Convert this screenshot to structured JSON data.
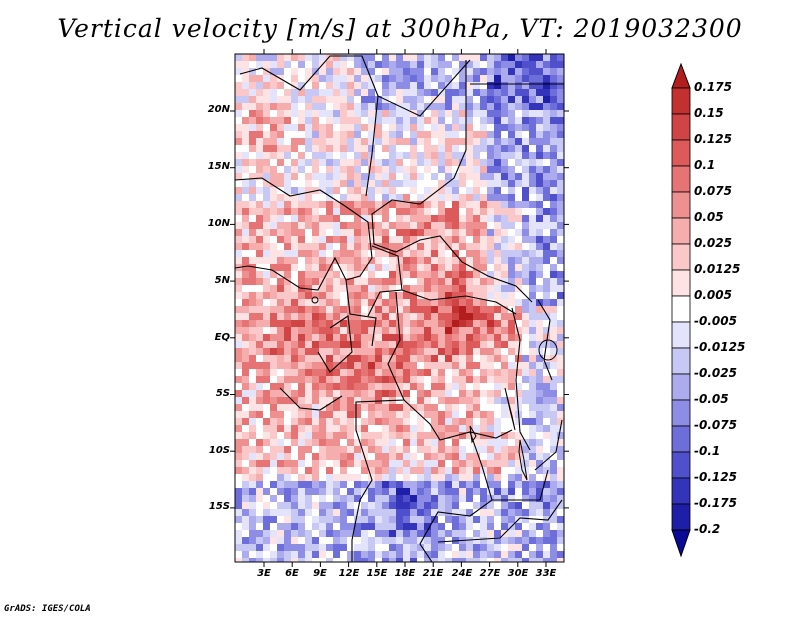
{
  "title": "Vertical velocity [m/s] at 300hPa, VT: 2019032300",
  "credit": "GrADS: IGES/COLA",
  "map": {
    "lat_labels": [
      "20N",
      "15N",
      "10N",
      "5N",
      "EQ",
      "5S",
      "10S",
      "15S"
    ],
    "lon_labels": [
      "3E",
      "6E",
      "9E",
      "12E",
      "15E",
      "18E",
      "21E",
      "24E",
      "27E",
      "30E",
      "33E"
    ]
  },
  "colorbar": {
    "labels": [
      "0.175",
      "0.15",
      "0.125",
      "0.1",
      "0.075",
      "0.05",
      "0.025",
      "0.0125",
      "0.005",
      "-0.005",
      "-0.0125",
      "-0.025",
      "-0.05",
      "-0.075",
      "-0.1",
      "-0.125",
      "-0.175",
      "-0.2"
    ],
    "colors": [
      "#b21e1e",
      "#c23030",
      "#cf4444",
      "#dc5a5a",
      "#e67474",
      "#ee9090",
      "#f5adad",
      "#fac8c8",
      "#fde3e3",
      "#ffffff",
      "#e3e3fb",
      "#c8c8f5",
      "#ababee",
      "#8d8de5",
      "#6e6eda",
      "#5050cc",
      "#3434ba",
      "#1e1ea8",
      "#0a0a96"
    ]
  }
}
